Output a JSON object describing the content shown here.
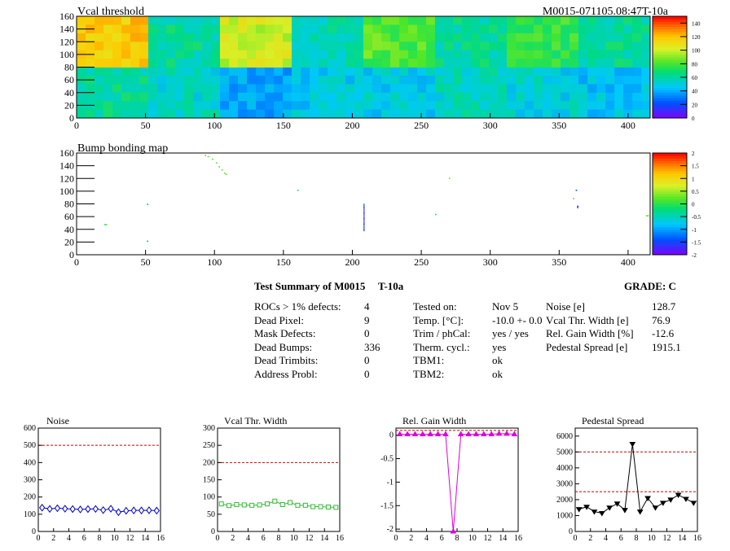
{
  "header": {
    "module_label": "M0015-071105.08:47T-10a"
  },
  "colors": {
    "accent_red": "#cc0000",
    "noise_blue": "#0000cc",
    "vcal_green": "#33bb33",
    "gain_magenta": "#dd00dd",
    "pedestal_black": "#000000"
  },
  "chart_data": [
    {
      "type": "heatmap",
      "title": "Vcal threshold",
      "xlim": [
        0,
        416
      ],
      "ylim": [
        0,
        160
      ],
      "xticks": [
        0,
        50,
        100,
        150,
        200,
        250,
        300,
        350,
        400
      ],
      "yticks": [
        0,
        20,
        40,
        60,
        80,
        100,
        120,
        140,
        160
      ],
      "colorbar": {
        "min": 0,
        "max": 150,
        "ticks": [
          0,
          20,
          40,
          60,
          80,
          100,
          120,
          140
        ]
      },
      "roc_grid": {
        "cols": 8,
        "rows": 2,
        "roc_width": 52,
        "roc_height": 80
      },
      "roc_mean_values": [
        [
          62,
          55,
          40,
          48,
          50,
          56,
          52,
          46
        ],
        [
          118,
          62,
          100,
          58,
          82,
          62,
          76,
          62
        ]
      ]
    },
    {
      "type": "heatmap",
      "title": "Bump bonding map",
      "xlim": [
        0,
        416
      ],
      "ylim": [
        0,
        160
      ],
      "xticks": [
        0,
        50,
        100,
        150,
        200,
        250,
        300,
        350,
        400
      ],
      "yticks": [
        0,
        20,
        40,
        60,
        80,
        100,
        120,
        140,
        160
      ],
      "colorbar": {
        "min": -2,
        "max": 2,
        "ticks": [
          "-2",
          "-1.5",
          "-1",
          "-0.5",
          "0",
          "0.5",
          "1",
          "1.5",
          "2"
        ]
      },
      "points": [
        {
          "x": 93,
          "y": 156,
          "v": 0.2
        },
        {
          "x": 95,
          "y": 154,
          "v": 0.2
        },
        {
          "x": 98,
          "y": 150,
          "v": 0.2
        },
        {
          "x": 101,
          "y": 144,
          "v": 0.2
        },
        {
          "x": 103,
          "y": 138,
          "v": 0.2
        },
        {
          "x": 105,
          "y": 133,
          "v": 0.2
        },
        {
          "x": 107,
          "y": 128,
          "v": 0.2
        },
        {
          "x": 108,
          "y": 126,
          "v": 0.2
        },
        {
          "x": 160,
          "y": 101,
          "v": -0.1
        },
        {
          "x": 270,
          "y": 120,
          "v": 0.2
        },
        {
          "x": 51,
          "y": 79,
          "v": -1.0
        },
        {
          "x": 51,
          "y": 21,
          "v": -1.0
        },
        {
          "x": 20,
          "y": 47,
          "v": 0.1
        },
        {
          "x": 21,
          "y": 47,
          "v": 0.1
        },
        {
          "x": 260,
          "y": 63,
          "v": -0.3
        },
        {
          "x": 362,
          "y": 101,
          "v": -1.4
        },
        {
          "x": 360,
          "y": 88,
          "v": 0.2
        },
        {
          "x": 363,
          "y": 76,
          "v": -1.8
        },
        {
          "x": 363,
          "y": 74,
          "v": -1.8
        },
        {
          "x": 413,
          "y": 61,
          "v": 0.2
        },
        {
          "x": 414,
          "y": 61,
          "v": 0.2
        }
      ],
      "column_segment": {
        "x": 208,
        "y_from": 37,
        "y_to": 80,
        "v": -1.6
      }
    },
    {
      "type": "line",
      "title": "Noise",
      "xlim": [
        0,
        16
      ],
      "ylim": [
        0,
        600
      ],
      "xticks": [
        0,
        2,
        4,
        6,
        8,
        10,
        12,
        14,
        16
      ],
      "yticks": [
        0,
        100,
        200,
        300,
        400,
        500,
        600
      ],
      "reference_lines": [
        500
      ],
      "marker": "diamond",
      "x": [
        0.5,
        1.5,
        2.5,
        3.5,
        4.5,
        5.5,
        6.5,
        7.5,
        8.5,
        9.5,
        10.5,
        11.5,
        12.5,
        13.5,
        14.5,
        15.5
      ],
      "values": [
        138,
        131,
        135,
        132,
        130,
        128,
        130,
        131,
        124,
        132,
        112,
        120,
        122,
        122,
        123,
        121
      ]
    },
    {
      "type": "line",
      "title": "Vcal Thr. Width",
      "xlim": [
        0,
        16
      ],
      "ylim": [
        0,
        300
      ],
      "xticks": [
        0,
        2,
        4,
        6,
        8,
        10,
        12,
        14,
        16
      ],
      "yticks": [
        0,
        50,
        100,
        150,
        200,
        250,
        300
      ],
      "reference_lines": [
        200
      ],
      "marker": "square",
      "x": [
        0.5,
        1.5,
        2.5,
        3.5,
        4.5,
        5.5,
        6.5,
        7.5,
        8.5,
        9.5,
        10.5,
        11.5,
        12.5,
        13.5,
        14.5,
        15.5
      ],
      "values": [
        80,
        75,
        78,
        77,
        76,
        77,
        80,
        88,
        78,
        84,
        76,
        76,
        72,
        72,
        71,
        70
      ]
    },
    {
      "type": "line",
      "title": "Rel. Gain Width",
      "xlim": [
        0,
        16
      ],
      "ylim": [
        -2.05,
        0.15
      ],
      "xticks": [
        0,
        2,
        4,
        6,
        8,
        10,
        12,
        14,
        16
      ],
      "yticks": [
        "-2",
        "-1.5",
        "-1",
        "-0.5",
        "0"
      ],
      "reference_lines": [
        0.1
      ],
      "marker": "triangle",
      "x": [
        0.5,
        1.5,
        2.5,
        3.5,
        4.5,
        5.5,
        6.5,
        7.5,
        8.5,
        9.5,
        10.5,
        11.5,
        12.5,
        13.5,
        14.5,
        15.5
      ],
      "values": [
        0.02,
        0.02,
        0.02,
        0.02,
        0.02,
        0.02,
        0.02,
        -2.05,
        0.02,
        0.02,
        0.02,
        0.02,
        0.02,
        0.03,
        0.03,
        0.02
      ]
    },
    {
      "type": "line",
      "title": "Pedestal Spread",
      "xlim": [
        0,
        16
      ],
      "ylim": [
        0,
        6500
      ],
      "xticks": [
        0,
        2,
        4,
        6,
        8,
        10,
        12,
        14,
        16
      ],
      "yticks": [
        0,
        1000,
        2000,
        3000,
        4000,
        5000,
        6000
      ],
      "reference_lines": [
        5000,
        2500
      ],
      "marker": "triangle-down",
      "x": [
        0.5,
        1.5,
        2.5,
        3.5,
        4.5,
        5.5,
        6.5,
        7.5,
        8.5,
        9.5,
        10.5,
        11.5,
        12.5,
        13.5,
        14.5,
        15.5
      ],
      "values": [
        1400,
        1550,
        1250,
        1150,
        1500,
        1750,
        1350,
        5500,
        1250,
        2100,
        1500,
        1800,
        2000,
        2300,
        2050,
        1800
      ]
    }
  ],
  "summary": {
    "title": "Test Summary of M0015",
    "tag": "T-10a",
    "grade": "GRADE:  C",
    "col1": [
      {
        "label": "ROCs > 1% defects:",
        "value": "4"
      },
      {
        "label": "Dead Pixel:",
        "value": "9"
      },
      {
        "label": "Mask Defects:",
        "value": "0"
      },
      {
        "label": "Dead Bumps:",
        "value": "336"
      },
      {
        "label": "Dead Trimbits:",
        "value": "0"
      },
      {
        "label": "Address Probl:",
        "value": "0"
      }
    ],
    "col2": [
      {
        "label": "Tested on:",
        "value": "Nov 5"
      },
      {
        "label": "Temp. [°C]:",
        "value": "-10.0 +- 0.0"
      },
      {
        "label": "Trim / phCal:",
        "value": "yes / yes"
      },
      {
        "label": "Therm. cycl.:",
        "value": "yes"
      },
      {
        "label": "TBM1:",
        "value": "ok"
      },
      {
        "label": "TBM2:",
        "value": "ok"
      }
    ],
    "col3": [
      {
        "label": "Noise [e]",
        "value": "128.7"
      },
      {
        "label": "Vcal Thr. Width [e]",
        "value": "76.9"
      },
      {
        "label": "Rel. Gain Width [%]",
        "value": "-12.6"
      },
      {
        "label": "Pedestal Spread [e]",
        "value": "1915.1"
      }
    ]
  }
}
